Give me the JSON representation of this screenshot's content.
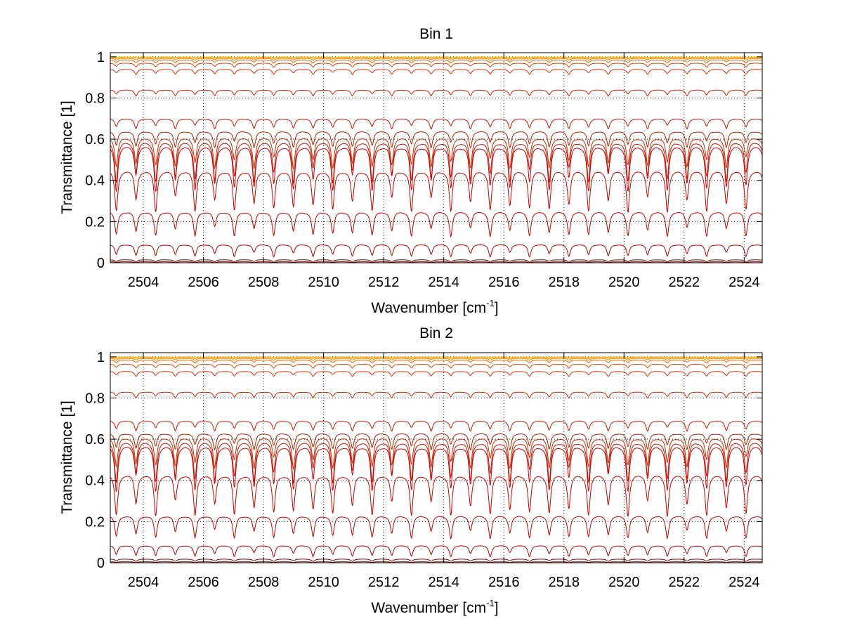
{
  "chart_data": [
    {
      "type": "line",
      "title": "Bin 1",
      "xlabel": "Wavenumber [cm",
      "xlabel_sup": "-1",
      "xlabel_suffix": "]",
      "ylabel": "Transmittance [1]",
      "xlim": [
        2502.9,
        2524.6
      ],
      "ylim": [
        0,
        1.02
      ],
      "xticks": [
        2504,
        2506,
        2508,
        2510,
        2512,
        2514,
        2516,
        2518,
        2520,
        2522,
        2524
      ],
      "yticks": [
        0,
        0.2,
        0.4,
        0.6,
        0.8,
        1
      ],
      "ytick_labels": [
        "0",
        "0.2",
        "0.4",
        "0.6",
        "0.8",
        "1"
      ],
      "grid": true,
      "grid_style": "dotted",
      "series_style": "many nested transmittance spectra with periodic absorption lines (~0.65 cm-1 spacing), colored dark red (low) through orange to yellow (near 1)",
      "series": [
        {
          "baseline": 0.005,
          "depth": 0.005,
          "color": "#8b0000"
        },
        {
          "baseline": 0.015,
          "depth": 0.012,
          "color": "#8b0000"
        },
        {
          "baseline": 0.09,
          "depth": 0.06,
          "color": "#b00000"
        },
        {
          "baseline": 0.25,
          "depth": 0.12,
          "color": "#c00000"
        },
        {
          "baseline": 0.45,
          "depth": 0.2,
          "color": "#c80000"
        },
        {
          "baseline": 0.57,
          "depth": 0.22,
          "color": "#cc0000"
        },
        {
          "baseline": 0.59,
          "depth": 0.2,
          "color": "#d01000"
        },
        {
          "baseline": 0.61,
          "depth": 0.15,
          "color": "#c03000"
        },
        {
          "baseline": 0.64,
          "depth": 0.08,
          "color": "#b02000"
        },
        {
          "baseline": 0.7,
          "depth": 0.05,
          "color": "#c81800"
        },
        {
          "baseline": 0.84,
          "depth": 0.03,
          "color": "#d02000"
        },
        {
          "baseline": 0.94,
          "depth": 0.025,
          "color": "#d83000"
        },
        {
          "baseline": 0.97,
          "depth": 0.02,
          "color": "#e04000"
        },
        {
          "baseline": 0.985,
          "depth": 0.015,
          "color": "#f06000"
        },
        {
          "baseline": 0.993,
          "depth": 0.01,
          "color": "#ff8000"
        },
        {
          "baseline": 0.997,
          "depth": 0.006,
          "color": "#ffa000"
        },
        {
          "baseline": 0.999,
          "depth": 0.003,
          "color": "#ffc000"
        }
      ]
    },
    {
      "type": "line",
      "title": "Bin 2",
      "xlabel": "Wavenumber [cm",
      "xlabel_sup": "-1",
      "xlabel_suffix": "]",
      "ylabel": "Transmittance [1]",
      "xlim": [
        2502.9,
        2524.6
      ],
      "ylim": [
        0,
        1.02
      ],
      "xticks": [
        2504,
        2506,
        2508,
        2510,
        2512,
        2514,
        2516,
        2518,
        2520,
        2522,
        2524
      ],
      "yticks": [
        0,
        0.2,
        0.4,
        0.6,
        0.8,
        1
      ],
      "ytick_labels": [
        "0",
        "0.2",
        "0.4",
        "0.6",
        "0.8",
        "1"
      ],
      "grid": true,
      "grid_style": "dotted",
      "series_style": "many nested transmittance spectra with periodic absorption lines (~0.65 cm-1 spacing), colored dark red (low) through orange to yellow (near 1)",
      "series": [
        {
          "baseline": 0.005,
          "depth": 0.005,
          "color": "#8b0000"
        },
        {
          "baseline": 0.018,
          "depth": 0.012,
          "color": "#8b0000"
        },
        {
          "baseline": 0.085,
          "depth": 0.055,
          "color": "#b00000"
        },
        {
          "baseline": 0.23,
          "depth": 0.11,
          "color": "#c00000"
        },
        {
          "baseline": 0.43,
          "depth": 0.2,
          "color": "#c80000"
        },
        {
          "baseline": 0.57,
          "depth": 0.22,
          "color": "#cc0000"
        },
        {
          "baseline": 0.59,
          "depth": 0.2,
          "color": "#d01000"
        },
        {
          "baseline": 0.61,
          "depth": 0.15,
          "color": "#c03000"
        },
        {
          "baseline": 0.63,
          "depth": 0.08,
          "color": "#b02000"
        },
        {
          "baseline": 0.69,
          "depth": 0.05,
          "color": "#c81800"
        },
        {
          "baseline": 0.83,
          "depth": 0.03,
          "color": "#d02000"
        },
        {
          "baseline": 0.93,
          "depth": 0.025,
          "color": "#d83000"
        },
        {
          "baseline": 0.965,
          "depth": 0.02,
          "color": "#e04000"
        },
        {
          "baseline": 0.985,
          "depth": 0.015,
          "color": "#f06000"
        },
        {
          "baseline": 0.993,
          "depth": 0.01,
          "color": "#ff8000"
        },
        {
          "baseline": 0.997,
          "depth": 0.006,
          "color": "#ffa000"
        },
        {
          "baseline": 0.999,
          "depth": 0.003,
          "color": "#ffc000"
        }
      ]
    }
  ]
}
